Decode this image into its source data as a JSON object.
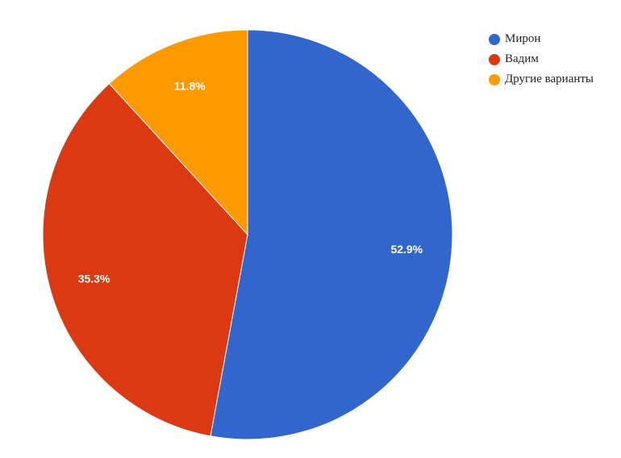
{
  "chart_data": {
    "type": "pie",
    "title": "",
    "legend_position": "top-right",
    "start_angle_deg": 0,
    "direction": "clockwise",
    "slices": [
      {
        "label": "Мирон",
        "value": 52.9,
        "display": "52.9%",
        "color": "#3366cc"
      },
      {
        "label": "Вадим",
        "value": 35.3,
        "display": "35.3%",
        "color": "#dc3912"
      },
      {
        "label": "Другие варианты",
        "value": 11.8,
        "display": "11.8%",
        "color": "#ff9900"
      }
    ]
  }
}
